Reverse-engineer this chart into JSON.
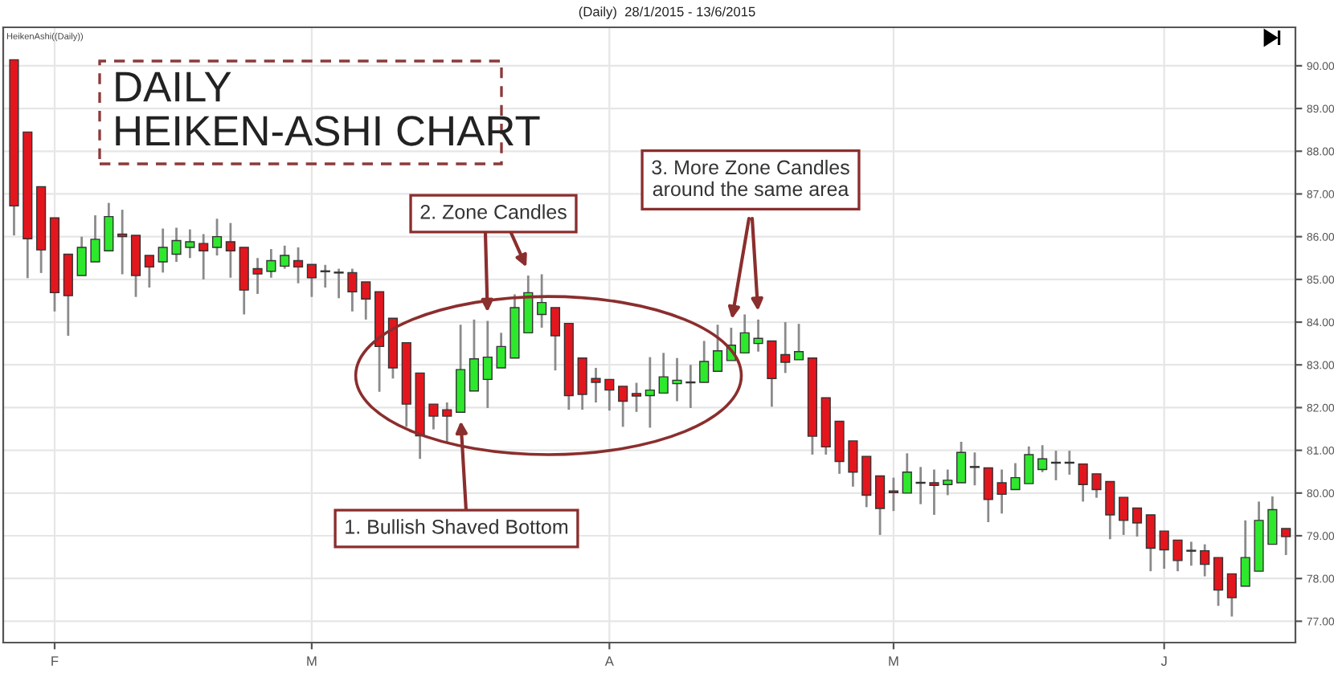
{
  "chart_data": {
    "type": "candlestick",
    "title": "(Daily)  28/1/2015 - 13/6/2015",
    "subtitle": "DAILY\nHEIKEN-ASHI CHART",
    "annotations": [
      "HeikenAshi((Daily))",
      "1. Bullish Shaved Bottom",
      "2. Zone Candles",
      "3. More Zone Candles\naround the same area"
    ],
    "categories": [
      null,
      null,
      null,
      "F",
      null,
      null,
      null,
      null,
      null,
      null,
      null,
      null,
      null,
      null,
      null,
      null,
      null,
      null,
      null,
      null,
      null,
      null,
      "M",
      null,
      null,
      null,
      null,
      null,
      null,
      null,
      null,
      null,
      null,
      null,
      null,
      null,
      null,
      null,
      null,
      null,
      null,
      null,
      null,
      null,
      "A",
      null,
      null,
      null,
      null,
      null,
      null,
      null,
      null,
      null,
      null,
      null,
      null,
      null,
      null,
      null,
      null,
      null,
      null,
      null,
      null,
      "M",
      null,
      null,
      null,
      null,
      null,
      null,
      null,
      null,
      null,
      null,
      null,
      null,
      null,
      null,
      null,
      null,
      null,
      null,
      null,
      "J",
      null,
      null,
      null,
      null,
      null,
      null,
      null,
      null,
      null
    ],
    "ohlc": [
      [
        90.14,
        90.14,
        86.03,
        86.72
      ],
      [
        88.45,
        88.45,
        85.03,
        85.95
      ],
      [
        87.17,
        87.17,
        85.15,
        85.69
      ],
      [
        86.44,
        86.44,
        84.25,
        84.69
      ],
      [
        85.59,
        85.59,
        83.68,
        84.62
      ],
      [
        85.09,
        86.0,
        85.09,
        85.75
      ],
      [
        85.41,
        86.5,
        85.41,
        85.94
      ],
      [
        85.67,
        86.79,
        85.67,
        86.47
      ],
      [
        86.06,
        86.63,
        85.12,
        86.0
      ],
      [
        86.03,
        86.03,
        84.59,
        85.09
      ],
      [
        85.56,
        85.56,
        84.81,
        85.29
      ],
      [
        85.41,
        86.19,
        85.16,
        85.75
      ],
      [
        85.59,
        86.21,
        85.41,
        85.91
      ],
      [
        85.75,
        86.17,
        85.5,
        85.88
      ],
      [
        85.84,
        86.06,
        85.0,
        85.67
      ],
      [
        85.75,
        86.42,
        85.56,
        86.0
      ],
      [
        85.88,
        86.32,
        85.04,
        85.67
      ],
      [
        85.75,
        85.75,
        84.18,
        84.75
      ],
      [
        85.25,
        85.5,
        84.66,
        85.13
      ],
      [
        85.19,
        85.71,
        85.04,
        85.44
      ],
      [
        85.31,
        85.79,
        85.25,
        85.56
      ],
      [
        85.44,
        85.75,
        84.91,
        85.29
      ],
      [
        85.35,
        85.35,
        84.59,
        85.04
      ],
      [
        85.2,
        85.34,
        84.81,
        85.18
      ],
      [
        85.17,
        85.25,
        84.56,
        85.15
      ],
      [
        85.16,
        85.25,
        84.25,
        84.71
      ],
      [
        84.94,
        84.94,
        84.06,
        84.54
      ],
      [
        84.71,
        84.71,
        82.37,
        83.43
      ],
      [
        84.09,
        84.09,
        82.68,
        82.93
      ],
      [
        83.52,
        83.52,
        81.55,
        82.08
      ],
      [
        82.81,
        82.81,
        80.8,
        81.34
      ],
      [
        82.08,
        82.08,
        81.49,
        81.8
      ],
      [
        81.95,
        82.12,
        81.18,
        81.8
      ],
      [
        81.89,
        83.94,
        81.89,
        82.89
      ],
      [
        82.39,
        84.06,
        82.39,
        83.14
      ],
      [
        82.66,
        84.03,
        81.99,
        83.18
      ],
      [
        82.93,
        83.75,
        82.93,
        83.43
      ],
      [
        83.16,
        84.65,
        83.16,
        84.34
      ],
      [
        83.75,
        85.09,
        83.75,
        84.69
      ],
      [
        84.18,
        85.12,
        83.87,
        84.46
      ],
      [
        84.34,
        84.34,
        82.87,
        83.68
      ],
      [
        83.97,
        83.97,
        81.95,
        82.28
      ],
      [
        83.16,
        83.16,
        81.95,
        82.31
      ],
      [
        82.68,
        82.93,
        82.12,
        82.59
      ],
      [
        82.66,
        82.66,
        81.93,
        82.41
      ],
      [
        82.5,
        82.5,
        81.55,
        82.15
      ],
      [
        82.33,
        82.58,
        81.9,
        82.27
      ],
      [
        82.28,
        83.18,
        81.53,
        82.41
      ],
      [
        82.34,
        83.28,
        82.34,
        82.72
      ],
      [
        82.56,
        83.16,
        82.15,
        82.64
      ],
      [
        82.58,
        83.0,
        81.99,
        82.6
      ],
      [
        82.59,
        83.56,
        82.59,
        83.08
      ],
      [
        82.85,
        83.94,
        82.85,
        83.33
      ],
      [
        83.1,
        83.87,
        83.1,
        83.46
      ],
      [
        83.28,
        84.18,
        83.28,
        83.75
      ],
      [
        83.5,
        84.06,
        83.31,
        83.62
      ],
      [
        83.56,
        83.56,
        82.02,
        82.68
      ],
      [
        83.24,
        84.0,
        82.81,
        83.06
      ],
      [
        83.12,
        83.96,
        83.12,
        83.31
      ],
      [
        83.16,
        83.16,
        80.9,
        81.33
      ],
      [
        82.23,
        82.23,
        80.9,
        81.08
      ],
      [
        81.68,
        81.68,
        80.45,
        80.74
      ],
      [
        81.22,
        81.22,
        80.15,
        80.49
      ],
      [
        80.86,
        80.86,
        79.67,
        79.95
      ],
      [
        80.4,
        80.4,
        79.02,
        79.64
      ],
      [
        80.05,
        80.36,
        79.58,
        80.01
      ],
      [
        80.0,
        80.93,
        80.0,
        80.49
      ],
      [
        80.23,
        80.61,
        79.74,
        80.25
      ],
      [
        80.24,
        80.55,
        79.49,
        80.18
      ],
      [
        80.2,
        80.55,
        79.95,
        80.3
      ],
      [
        80.24,
        81.2,
        80.24,
        80.95
      ],
      [
        80.6,
        80.95,
        80.18,
        80.62
      ],
      [
        80.59,
        80.59,
        79.32,
        79.85
      ],
      [
        80.24,
        80.55,
        79.52,
        79.97
      ],
      [
        80.08,
        80.7,
        80.08,
        80.36
      ],
      [
        80.22,
        81.09,
        80.22,
        80.9
      ],
      [
        80.55,
        81.12,
        80.49,
        80.8
      ],
      [
        80.7,
        80.99,
        80.3,
        80.72
      ],
      [
        80.7,
        80.99,
        80.43,
        80.72
      ],
      [
        80.68,
        80.68,
        79.8,
        80.2
      ],
      [
        80.45,
        80.45,
        79.89,
        80.08
      ],
      [
        80.27,
        80.27,
        78.92,
        79.49
      ],
      [
        79.9,
        79.9,
        79.02,
        79.36
      ],
      [
        79.65,
        79.65,
        78.98,
        79.3
      ],
      [
        79.49,
        79.49,
        78.17,
        78.71
      ],
      [
        79.11,
        79.11,
        78.23,
        78.67
      ],
      [
        78.9,
        78.9,
        78.17,
        78.42
      ],
      [
        78.66,
        78.86,
        78.3,
        78.64
      ],
      [
        78.65,
        78.8,
        78.05,
        78.33
      ],
      [
        78.49,
        78.49,
        77.36,
        77.73
      ],
      [
        78.11,
        78.11,
        77.11,
        77.55
      ],
      [
        77.82,
        79.36,
        77.82,
        78.49
      ],
      [
        78.17,
        79.8,
        78.17,
        79.36
      ],
      [
        78.8,
        79.92,
        78.8,
        79.61
      ],
      [
        79.17,
        79.17,
        78.55,
        78.98
      ]
    ],
    "colors": [
      "#e3161e",
      "#e3161e",
      "#e3161e",
      "#e3161e",
      "#e3161e",
      "#2ee82e",
      "#2ee82e",
      "#2ee82e",
      "#e3161e",
      "#e3161e",
      "#e3161e",
      "#2ee82e",
      "#2ee82e",
      "#2ee82e",
      "#e3161e",
      "#2ee82e",
      "#e3161e",
      "#e3161e",
      "#e3161e",
      "#2ee82e",
      "#2ee82e",
      "#e3161e",
      "#e3161e",
      "#e3161e",
      "#e3161e",
      "#e3161e",
      "#e3161e",
      "#e3161e",
      "#e3161e",
      "#e3161e",
      "#e3161e",
      "#e3161e",
      "#e3161e",
      "#2ee82e",
      "#2ee82e",
      "#2ee82e",
      "#2ee82e",
      "#2ee82e",
      "#2ee82e",
      "#2ee82e",
      "#e3161e",
      "#e3161e",
      "#e3161e",
      "#e3161e",
      "#e3161e",
      "#e3161e",
      "#e3161e",
      "#2ee82e",
      "#2ee82e",
      "#2ee82e",
      "#2ee82e",
      "#2ee82e",
      "#2ee82e",
      "#2ee82e",
      "#2ee82e",
      "#2ee82e",
      "#e3161e",
      "#e3161e",
      "#2ee82e",
      "#e3161e",
      "#e3161e",
      "#e3161e",
      "#e3161e",
      "#e3161e",
      "#e3161e",
      "#e3161e",
      "#2ee82e",
      "#2ee82e",
      "#e3161e",
      "#2ee82e",
      "#2ee82e",
      "#2ee82e",
      "#e3161e",
      "#e3161e",
      "#2ee82e",
      "#2ee82e",
      "#2ee82e",
      "#2ee82e",
      "#2ee82e",
      "#e3161e",
      "#e3161e",
      "#e3161e",
      "#e3161e",
      "#e3161e",
      "#e3161e",
      "#e3161e",
      "#e3161e",
      "#e3161e",
      "#e3161e",
      "#e3161e",
      "#e3161e",
      "#2ee82e",
      "#2ee82e",
      "#2ee82e",
      "#e3161e"
    ],
    "ylim": [
      76.5,
      90.9
    ],
    "yticks": [
      {
        "value": 77,
        "label": "77.00"
      },
      {
        "value": 78,
        "label": "78.00"
      },
      {
        "value": 79,
        "label": "79.00"
      },
      {
        "value": 80,
        "label": "80.00"
      },
      {
        "value": 81,
        "label": "81.00"
      },
      {
        "value": 82,
        "label": "82.00"
      },
      {
        "value": 83,
        "label": "83.00"
      },
      {
        "value": 84,
        "label": "84.00"
      },
      {
        "value": 85,
        "label": "85.00"
      },
      {
        "value": 86,
        "label": "86.00"
      },
      {
        "value": 87,
        "label": "87.00"
      },
      {
        "value": 88,
        "label": "88.00"
      },
      {
        "value": 89,
        "label": "89.00"
      },
      {
        "value": 90,
        "label": "90.00"
      }
    ],
    "grid": true
  }
}
